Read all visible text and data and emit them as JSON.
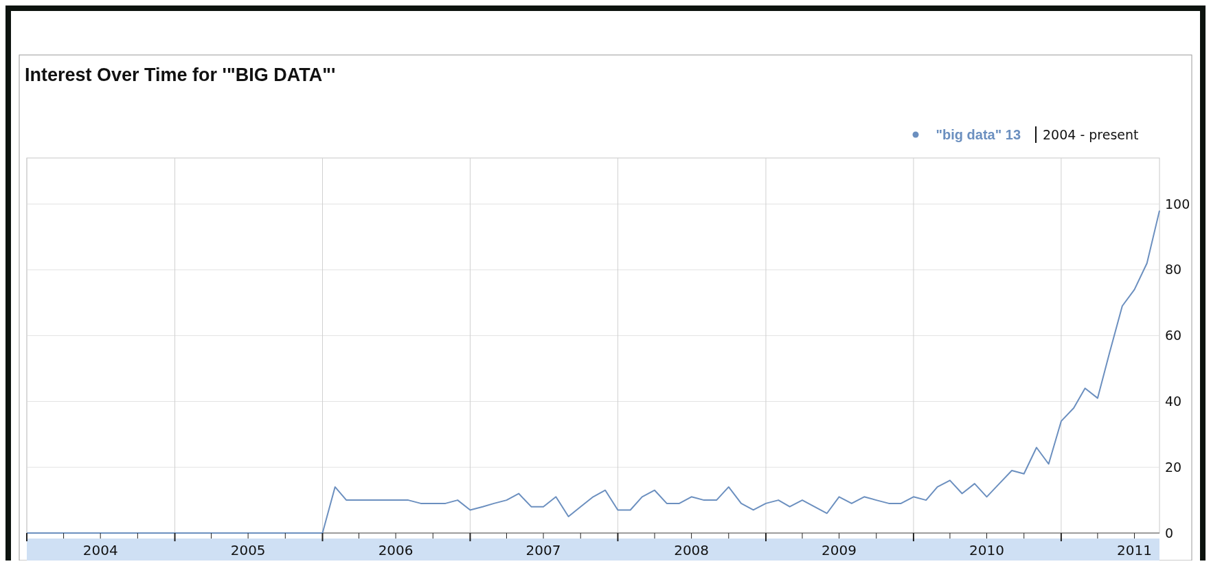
{
  "chart_data": {
    "type": "line",
    "title": "Interest Over Time for '\"BIG DATA\"'",
    "subtitle": "2004 - present",
    "x": [
      "2004-01",
      "2004-02",
      "2004-03",
      "2004-04",
      "2004-05",
      "2004-06",
      "2004-07",
      "2004-08",
      "2004-09",
      "2004-10",
      "2004-11",
      "2004-12",
      "2005-01",
      "2005-02",
      "2005-03",
      "2005-04",
      "2005-05",
      "2005-06",
      "2005-07",
      "2005-08",
      "2005-09",
      "2005-10",
      "2005-11",
      "2005-12",
      "2006-01",
      "2006-02",
      "2006-03",
      "2006-04",
      "2006-05",
      "2006-06",
      "2006-07",
      "2006-08",
      "2006-09",
      "2006-10",
      "2006-11",
      "2006-12",
      "2007-01",
      "2007-02",
      "2007-03",
      "2007-04",
      "2007-05",
      "2007-06",
      "2007-07",
      "2007-08",
      "2007-09",
      "2007-10",
      "2007-11",
      "2007-12",
      "2008-01",
      "2008-02",
      "2008-03",
      "2008-04",
      "2008-05",
      "2008-06",
      "2008-07",
      "2008-08",
      "2008-09",
      "2008-10",
      "2008-11",
      "2008-12",
      "2009-01",
      "2009-02",
      "2009-03",
      "2009-04",
      "2009-05",
      "2009-06",
      "2009-07",
      "2009-08",
      "2009-09",
      "2009-10",
      "2009-11",
      "2009-12",
      "2010-01",
      "2010-02",
      "2010-03",
      "2010-04",
      "2010-05",
      "2010-06",
      "2010-07",
      "2010-08",
      "2010-09",
      "2010-10",
      "2010-11",
      "2010-12",
      "2011-01",
      "2011-02",
      "2011-03",
      "2011-04",
      "2011-05",
      "2011-06",
      "2011-07",
      "2011-08",
      "2011-09"
    ],
    "series": [
      {
        "name": "\"big data\" 13",
        "color": "#6b8fbf",
        "values": [
          0,
          0,
          0,
          0,
          0,
          0,
          0,
          0,
          0,
          0,
          0,
          0,
          0,
          0,
          0,
          0,
          0,
          0,
          0,
          0,
          0,
          0,
          0,
          0,
          0,
          14,
          10,
          10,
          10,
          10,
          10,
          10,
          9,
          9,
          9,
          10,
          7,
          8,
          9,
          10,
          12,
          8,
          8,
          11,
          5,
          8,
          11,
          13,
          7,
          7,
          11,
          13,
          9,
          9,
          11,
          10,
          10,
          14,
          9,
          7,
          9,
          10,
          8,
          10,
          8,
          6,
          11,
          9,
          11,
          10,
          9,
          9,
          11,
          10,
          14,
          16,
          12,
          15,
          11,
          15,
          19,
          18,
          26,
          21,
          34,
          38,
          44,
          41,
          55,
          69,
          74,
          82,
          98
        ]
      }
    ],
    "xlim": [
      "2004-01",
      "2011-09"
    ],
    "xticks": [
      {
        "value": "2004-01",
        "label": null
      },
      {
        "value": "2004-04",
        "label": null
      },
      {
        "value": "2004-07",
        "label": "2004"
      },
      {
        "value": "2004-10",
        "label": null
      },
      {
        "value": "2005-01",
        "label": null
      },
      {
        "value": "2005-04",
        "label": null
      },
      {
        "value": "2005-07",
        "label": "2005"
      },
      {
        "value": "2005-10",
        "label": null
      },
      {
        "value": "2006-01",
        "label": null
      },
      {
        "value": "2006-04",
        "label": null
      },
      {
        "value": "2006-07",
        "label": "2006"
      },
      {
        "value": "2006-10",
        "label": null
      },
      {
        "value": "2007-01",
        "label": null
      },
      {
        "value": "2007-04",
        "label": null
      },
      {
        "value": "2007-07",
        "label": "2007"
      },
      {
        "value": "2007-10",
        "label": null
      },
      {
        "value": "2008-01",
        "label": null
      },
      {
        "value": "2008-04",
        "label": null
      },
      {
        "value": "2008-07",
        "label": "2008"
      },
      {
        "value": "2008-10",
        "label": null
      },
      {
        "value": "2009-01",
        "label": null
      },
      {
        "value": "2009-04",
        "label": null
      },
      {
        "value": "2009-07",
        "label": "2009"
      },
      {
        "value": "2009-10",
        "label": null
      },
      {
        "value": "2010-01",
        "label": null
      },
      {
        "value": "2010-04",
        "label": null
      },
      {
        "value": "2010-07",
        "label": "2010"
      },
      {
        "value": "2010-10",
        "label": null
      },
      {
        "value": "2011-01",
        "label": null
      },
      {
        "value": "2011-04",
        "label": null
      },
      {
        "value": "2011-07",
        "label": "2011"
      }
    ],
    "ylim": [
      0,
      114
    ],
    "yticks": [
      0,
      20,
      40,
      60,
      80,
      100
    ],
    "grid": true,
    "legend": "top right",
    "marker": "none",
    "line_style": "solid"
  }
}
